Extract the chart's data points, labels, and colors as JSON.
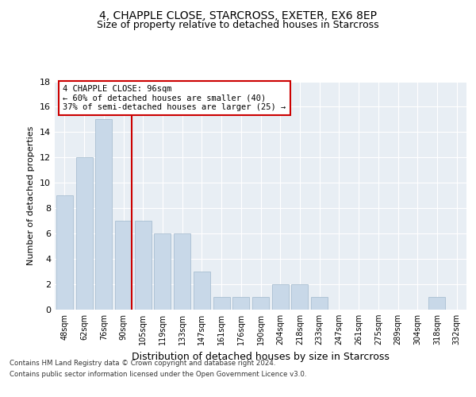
{
  "title1": "4, CHAPPLE CLOSE, STARCROSS, EXETER, EX6 8EP",
  "title2": "Size of property relative to detached houses in Starcross",
  "xlabel": "Distribution of detached houses by size in Starcross",
  "ylabel": "Number of detached properties",
  "footer1": "Contains HM Land Registry data © Crown copyright and database right 2024.",
  "footer2": "Contains public sector information licensed under the Open Government Licence v3.0.",
  "annotation_line1": "4 CHAPPLE CLOSE: 96sqm",
  "annotation_line2": "← 60% of detached houses are smaller (40)",
  "annotation_line3": "37% of semi-detached houses are larger (25) →",
  "bar_color": "#c8d8e8",
  "bar_edgecolor": "#a0b8cc",
  "vline_color": "#cc0000",
  "vline_x": 3.43,
  "categories": [
    "48sqm",
    "62sqm",
    "76sqm",
    "90sqm",
    "105sqm",
    "119sqm",
    "133sqm",
    "147sqm",
    "161sqm",
    "176sqm",
    "190sqm",
    "204sqm",
    "218sqm",
    "233sqm",
    "247sqm",
    "261sqm",
    "275sqm",
    "289sqm",
    "304sqm",
    "318sqm",
    "332sqm"
  ],
  "values": [
    9,
    12,
    15,
    7,
    7,
    6,
    6,
    3,
    1,
    1,
    1,
    2,
    2,
    1,
    0,
    0,
    0,
    0,
    0,
    1,
    0
  ],
  "ylim": [
    0,
    18
  ],
  "yticks": [
    0,
    2,
    4,
    6,
    8,
    10,
    12,
    14,
    16,
    18
  ],
  "bg_color": "#e8eef4",
  "fig_bg": "#ffffff",
  "grid_color": "#ffffff",
  "title_fontsize": 10,
  "subtitle_fontsize": 9,
  "annotation_bbox_edgecolor": "#cc0000",
  "annotation_bbox_facecolor": "#ffffff"
}
